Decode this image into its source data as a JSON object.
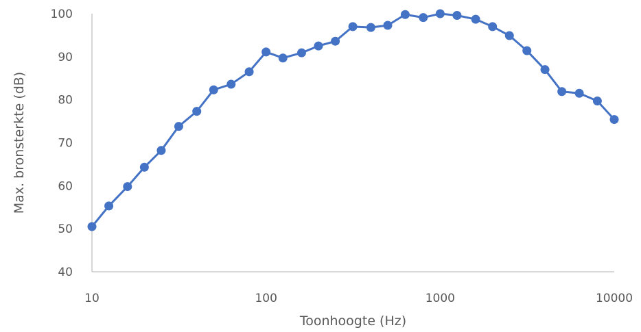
{
  "chart_data": {
    "type": "line",
    "title": "",
    "xlabel": "Toonhoogte (Hz)",
    "ylabel": "Max. bronsterkte (dB)",
    "x_scale": "log",
    "xlim": [
      10,
      10000
    ],
    "ylim": [
      40,
      100
    ],
    "x_ticks": [
      10,
      100,
      1000,
      10000
    ],
    "y_ticks": [
      40,
      50,
      60,
      70,
      80,
      90,
      100
    ],
    "grid": false,
    "legend": "none",
    "series": [
      {
        "color": "#4472c4",
        "marker": "circle",
        "x": [
          10,
          12.5,
          16,
          20,
          25,
          31.5,
          40,
          50,
          63,
          80,
          100,
          125,
          160,
          200,
          250,
          315,
          400,
          500,
          630,
          800,
          1000,
          1250,
          1600,
          2000,
          2500,
          3150,
          4000,
          5000,
          6300,
          8000,
          10000
        ],
        "y": [
          50.5,
          55.3,
          59.8,
          64.3,
          68.2,
          73.8,
          77.3,
          82.3,
          83.6,
          86.5,
          91.1,
          89.7,
          90.9,
          92.5,
          93.6,
          97.0,
          96.8,
          97.3,
          99.8,
          99.1,
          100.0,
          99.6,
          98.7,
          97.0,
          94.9,
          91.4,
          87.0,
          81.9,
          81.5,
          79.7,
          75.4
        ]
      }
    ]
  }
}
